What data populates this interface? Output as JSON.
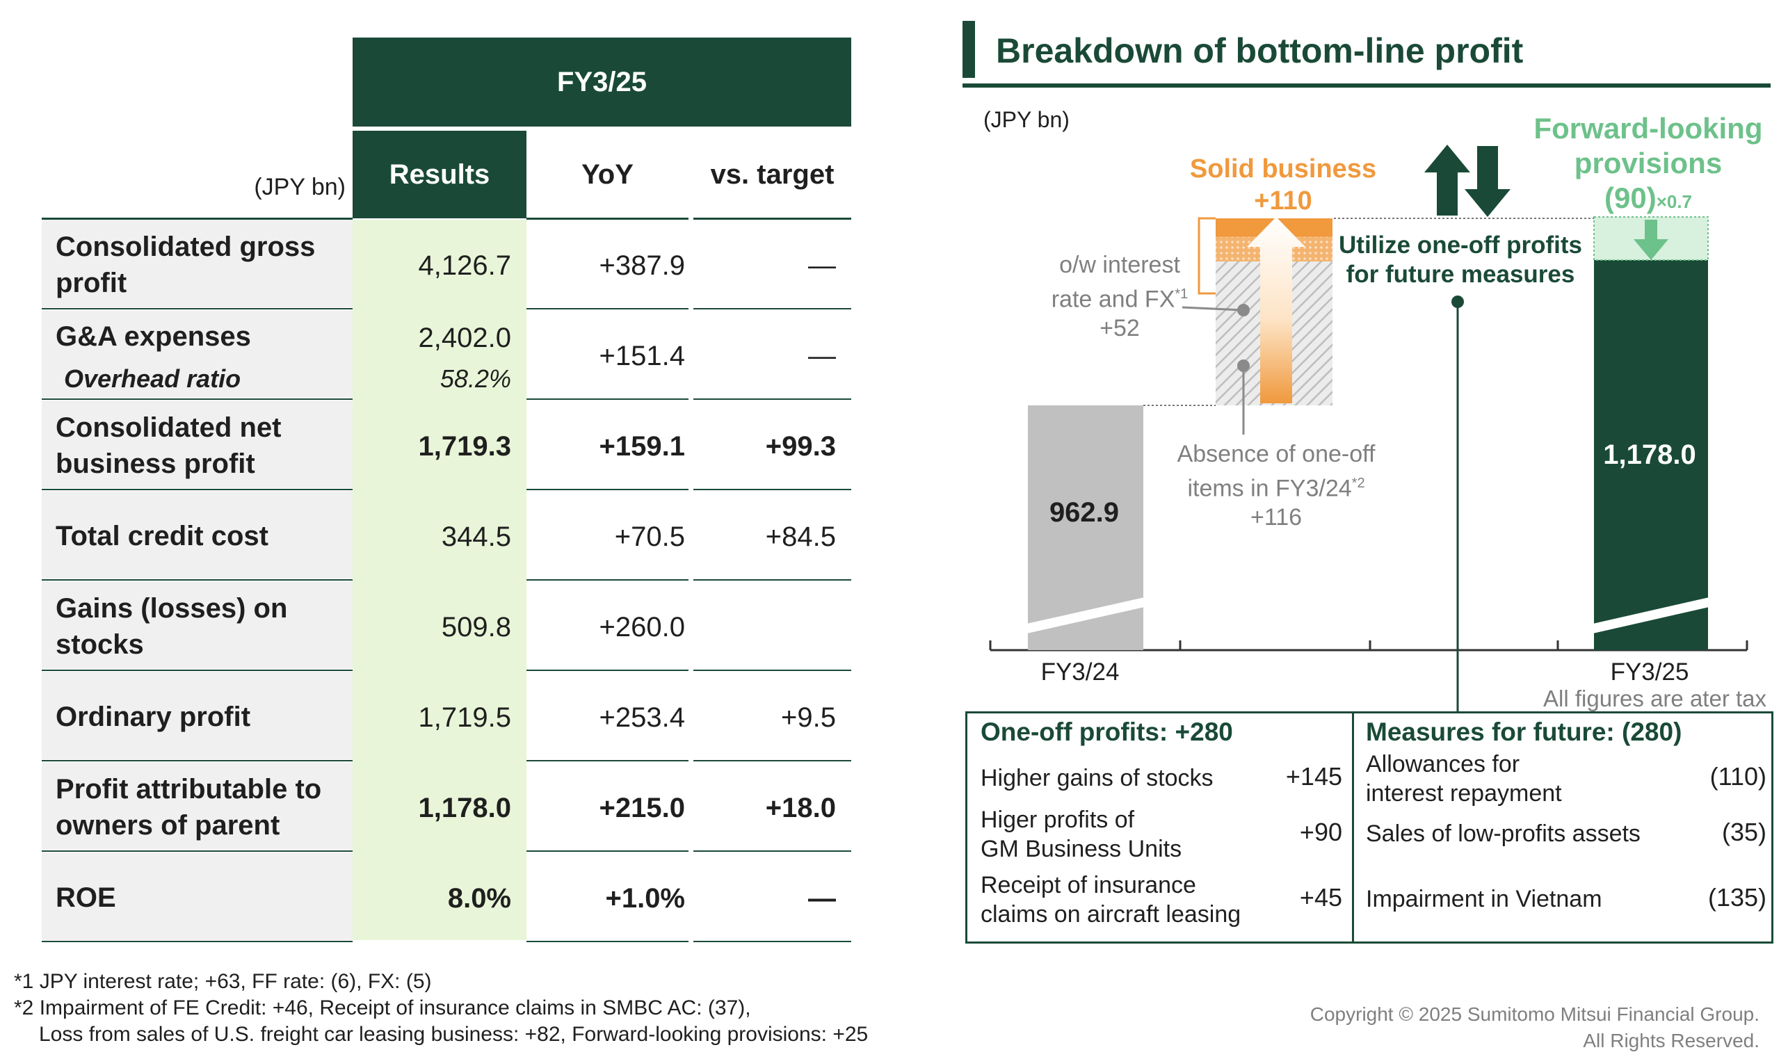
{
  "table": {
    "fy_header": "FY3/25",
    "unit": "(JPY bn)",
    "columns": [
      "Results",
      "YoY",
      "vs. target"
    ],
    "rows": [
      {
        "label": "Consolidated gross profit",
        "results": "4,126.7",
        "yoy": "+387.9",
        "target": "—",
        "bold": false
      },
      {
        "label": "G&A expenses",
        "results": "2,402.0",
        "sub_label": "Overhead ratio",
        "sub_value": "58.2%",
        "yoy": "+151.4",
        "target": "—",
        "bold": false
      },
      {
        "label": "Consolidated net business profit",
        "results": "1,719.3",
        "yoy": "+159.1",
        "target": "+99.3",
        "bold": true
      },
      {
        "label": "Total credit cost",
        "results": "344.5",
        "yoy": "+70.5",
        "target": "+84.5",
        "bold": false
      },
      {
        "label": "Gains (losses) on stocks",
        "results": "509.8",
        "yoy": "+260.0",
        "target": "",
        "bold": false
      },
      {
        "label": "Ordinary profit",
        "results": "1,719.5",
        "yoy": "+253.4",
        "target": "+9.5",
        "bold": false
      },
      {
        "label": "Profit attributable to owners of parent",
        "results": "1,178.0",
        "yoy": "+215.0",
        "target": "+18.0",
        "bold": true
      },
      {
        "label": "ROE",
        "results": "8.0%",
        "yoy": "+1.0%",
        "target": "—",
        "bold": true
      }
    ],
    "footnotes": [
      "*1 JPY interest rate; +63, FF rate: (6), FX: (5)",
      "*2 Impairment of FE Credit: +46, Receipt of insurance claims in SMBC AC: (37),",
      "Loss from sales of U.S. freight car leasing business: +82, Forward-looking provisions: +25"
    ]
  },
  "right": {
    "title": "Breakdown of bottom-line profit",
    "unit": "(JPY bn)",
    "solid_business_label": "Solid business",
    "solid_business_value": "+110",
    "forward_label_1": "Forward-looking",
    "forward_label_2": "provisions",
    "forward_value": "(90)",
    "forward_factor": "×0.7",
    "utilize_1": "Utilize one-off profits",
    "utilize_2": "for future measures",
    "owi_1": "o/w interest",
    "owi_2": "rate and FX",
    "owi_sup": "*1",
    "owi_3": "+52",
    "absence_1": "Absence of one-off",
    "absence_2": "items in FY3/24",
    "absence_sup": "*2",
    "absence_3": "+116",
    "all_figures": "All figures are ater tax",
    "box": {
      "left_title": "One-off profits: +280",
      "right_title": "Measures for future: (280)",
      "left_items": [
        {
          "l1": "Higher gains of stocks",
          "l2": "",
          "v": "+145"
        },
        {
          "l1": "Higer profits of",
          "l2": "GM Business Units",
          "v": "+90"
        },
        {
          "l1": "Receipt of insurance",
          "l2": "claims on aircraft leasing",
          "v": "+45"
        }
      ],
      "right_items": [
        {
          "l1": "Allowances for",
          "l2": "interest repayment",
          "v": "(110)"
        },
        {
          "l1": "Sales of low-profits assets",
          "l2": "",
          "v": "(35)"
        },
        {
          "l1": "Impairment in Vietnam",
          "l2": "",
          "v": "(135)"
        }
      ]
    },
    "copyright_1": "Copyright © 2025 Sumitomo Mitsui Financial Group.",
    "copyright_2": "All Rights Reserved."
  },
  "chart_data": {
    "type": "bar",
    "subtype": "waterfall",
    "unit": "(JPY bn)",
    "categories": [
      "FY3/24",
      "FY3/25"
    ],
    "start": {
      "category": "FY3/24",
      "value": 962.9,
      "label": "962.9"
    },
    "end": {
      "category": "FY3/25",
      "value": 1178.0,
      "label": "1,178.0"
    },
    "steps": [
      {
        "name": "Absence of one-off items in FY3/24",
        "value": 116
      },
      {
        "name": "o/w interest rate and FX",
        "value": 52
      },
      {
        "name": "Solid business",
        "value": 110,
        "note": "total of step"
      },
      {
        "name": "Forward-looking provisions",
        "value": -90,
        "factor": "×0.7"
      }
    ],
    "colors": {
      "fy24": "#c0c0c0",
      "fy25": "#1a4a37",
      "orange": "#f0993d",
      "light_green": "#d8f0de",
      "arrow_green": "#6dc18a"
    },
    "axis_broken": true
  }
}
